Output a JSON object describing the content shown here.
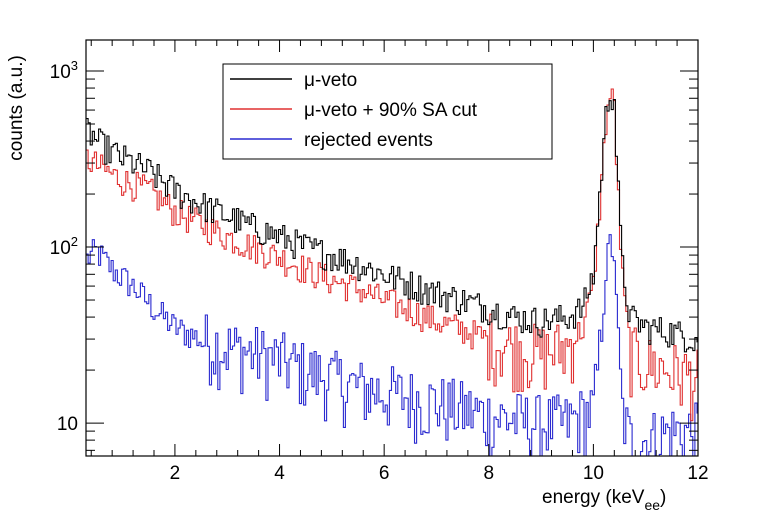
{
  "chart_data": {
    "type": "line",
    "subtype": "step-histogram",
    "title": "",
    "xlabel": "energy (keV",
    "xlabel_sub": "ee",
    "xlabel_close": ")",
    "ylabel": "counts (a.u.)",
    "xlim": [
      0.3,
      12
    ],
    "ylim": [
      6.5,
      1500
    ],
    "yscale": "log",
    "grid": false,
    "legend_position": "top-center",
    "x_ticks": [
      2,
      4,
      6,
      8,
      10,
      12
    ],
    "x_tick_labels": [
      "2",
      "4",
      "6",
      "8",
      "10",
      "12"
    ],
    "y_ticks": [
      10,
      100,
      1000
    ],
    "y_tick_labels": [
      {
        "base": "10",
        "exp": ""
      },
      {
        "base": "10",
        "exp": "2"
      },
      {
        "base": "10",
        "exp": "3"
      }
    ],
    "series": [
      {
        "name": "μ-veto",
        "color": "#000000",
        "points": [
          [
            0.3,
            470
          ],
          [
            0.6,
            380
          ],
          [
            1.0,
            320
          ],
          [
            1.5,
            270
          ],
          [
            2.0,
            210
          ],
          [
            2.5,
            175
          ],
          [
            3.0,
            150
          ],
          [
            3.5,
            130
          ],
          [
            4.0,
            115
          ],
          [
            4.5,
            100
          ],
          [
            5.0,
            90
          ],
          [
            5.5,
            80
          ],
          [
            6.0,
            70
          ],
          [
            6.5,
            62
          ],
          [
            7.0,
            55
          ],
          [
            7.5,
            50
          ],
          [
            8.0,
            45
          ],
          [
            8.5,
            40
          ],
          [
            9.0,
            38
          ],
          [
            9.5,
            40
          ],
          [
            9.8,
            45
          ],
          [
            10.0,
            70
          ],
          [
            10.15,
            250
          ],
          [
            10.25,
            600
          ],
          [
            10.32,
            780
          ],
          [
            10.4,
            700
          ],
          [
            10.45,
            300
          ],
          [
            10.55,
            80
          ],
          [
            10.7,
            40
          ],
          [
            11.0,
            35
          ],
          [
            11.5,
            33
          ],
          [
            12.0,
            30
          ]
        ]
      },
      {
        "name": "μ-veto + 90% SA cut",
        "color": "#e03030",
        "points": [
          [
            0.3,
            320
          ],
          [
            0.6,
            280
          ],
          [
            1.0,
            240
          ],
          [
            1.5,
            210
          ],
          [
            2.0,
            160
          ],
          [
            2.5,
            135
          ],
          [
            3.0,
            115
          ],
          [
            3.5,
            100
          ],
          [
            4.0,
            88
          ],
          [
            4.5,
            75
          ],
          [
            5.0,
            65
          ],
          [
            5.5,
            58
          ],
          [
            6.0,
            50
          ],
          [
            6.5,
            44
          ],
          [
            7.0,
            38
          ],
          [
            7.5,
            34
          ],
          [
            8.0,
            30
          ],
          [
            8.5,
            27
          ],
          [
            9.0,
            25
          ],
          [
            9.5,
            27
          ],
          [
            9.8,
            35
          ],
          [
            10.0,
            60
          ],
          [
            10.15,
            220
          ],
          [
            10.25,
            560
          ],
          [
            10.32,
            720
          ],
          [
            10.4,
            650
          ],
          [
            10.45,
            280
          ],
          [
            10.55,
            70
          ],
          [
            10.7,
            25
          ],
          [
            11.0,
            22
          ],
          [
            11.5,
            20
          ],
          [
            12.0,
            18
          ]
        ]
      },
      {
        "name": "rejected events",
        "color": "#2a2ad0",
        "points": [
          [
            0.3,
            85
          ],
          [
            0.5,
            95
          ],
          [
            0.8,
            75
          ],
          [
            1.2,
            60
          ],
          [
            1.6,
            45
          ],
          [
            2.0,
            35
          ],
          [
            2.5,
            30
          ],
          [
            3.0,
            27
          ],
          [
            3.5,
            25
          ],
          [
            4.0,
            23
          ],
          [
            4.5,
            20
          ],
          [
            5.0,
            18
          ],
          [
            5.5,
            16
          ],
          [
            6.0,
            15
          ],
          [
            6.5,
            14
          ],
          [
            7.0,
            13
          ],
          [
            7.5,
            12
          ],
          [
            8.0,
            11
          ],
          [
            8.5,
            10.5
          ],
          [
            9.0,
            10
          ],
          [
            9.5,
            10
          ],
          [
            10.0,
            12
          ],
          [
            10.15,
            30
          ],
          [
            10.25,
            80
          ],
          [
            10.32,
            105
          ],
          [
            10.4,
            90
          ],
          [
            10.45,
            40
          ],
          [
            10.55,
            12
          ],
          [
            10.7,
            8
          ],
          [
            11.0,
            8
          ],
          [
            11.5,
            9
          ],
          [
            12.0,
            9
          ]
        ]
      }
    ]
  }
}
